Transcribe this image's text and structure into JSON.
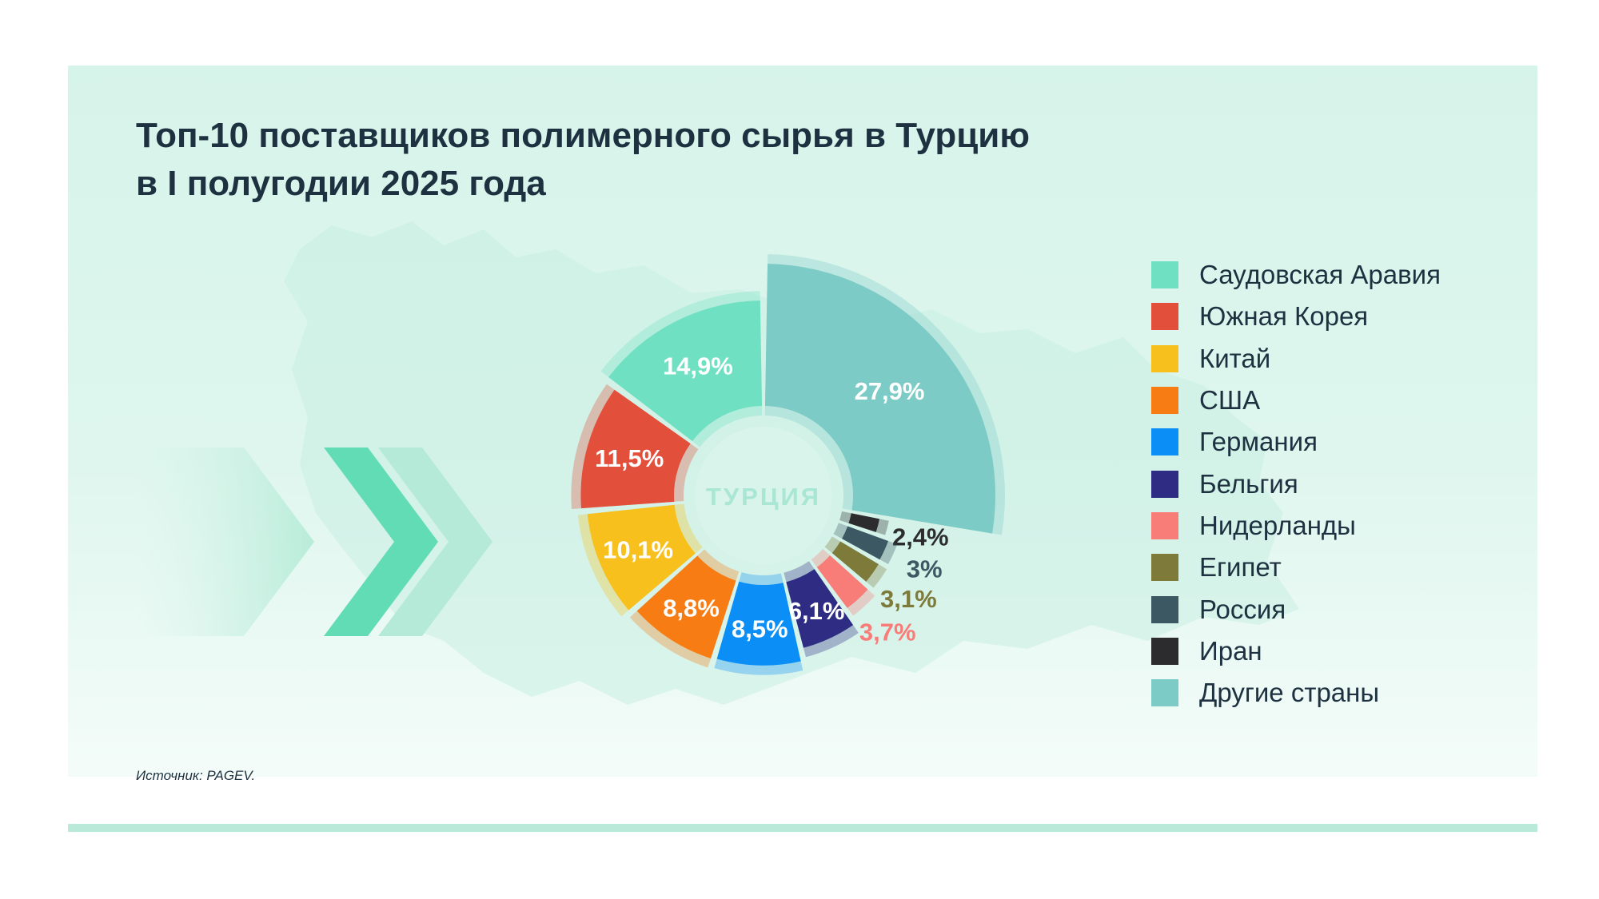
{
  "title_line1": "Топ-10 поставщиков полимерного сырья в Турцию",
  "title_line2": "в I полугодии 2025 года",
  "source": "Источник: PAGEV.",
  "chart_data": {
    "type": "pie",
    "center_label": "ТУРЦИЯ",
    "unit": "%",
    "slices": [
      {
        "name": "Другие страны",
        "value": 27.9,
        "label": "27,9%",
        "color": "#7dcbc6"
      },
      {
        "name": "Иран",
        "value": 2.4,
        "label": "2,4%",
        "color": "#2c2c2e"
      },
      {
        "name": "Россия",
        "value": 3.0,
        "label": "3%",
        "color": "#3c5963"
      },
      {
        "name": "Египет",
        "value": 3.1,
        "label": "3,1%",
        "color": "#7d7a3a"
      },
      {
        "name": "Нидерланды",
        "value": 3.7,
        "label": "3,7%",
        "color": "#f87c78"
      },
      {
        "name": "Бельгия",
        "value": 6.1,
        "label": "6,1%",
        "color": "#2e2d83"
      },
      {
        "name": "Германия",
        "value": 8.5,
        "label": "8,5%",
        "color": "#0b8ff7"
      },
      {
        "name": "США",
        "value": 8.8,
        "label": "8,8%",
        "color": "#f77c13"
      },
      {
        "name": "Китай",
        "value": 10.1,
        "label": "10,1%",
        "color": "#f7c01c"
      },
      {
        "name": "Южная Корея",
        "value": 11.5,
        "label": "11,5%",
        "color": "#e24f3b"
      },
      {
        "name": "Саудовская Аравия",
        "value": 14.9,
        "label": "14,9%",
        "color": "#6fe0c2"
      }
    ],
    "legend_order": [
      "Саудовская Аравия",
      "Южная Корея",
      "Китай",
      "США",
      "Германия",
      "Бельгия",
      "Нидерланды",
      "Египет",
      "Россия",
      "Иран",
      "Другие страны"
    ],
    "legend_placement": "right"
  }
}
